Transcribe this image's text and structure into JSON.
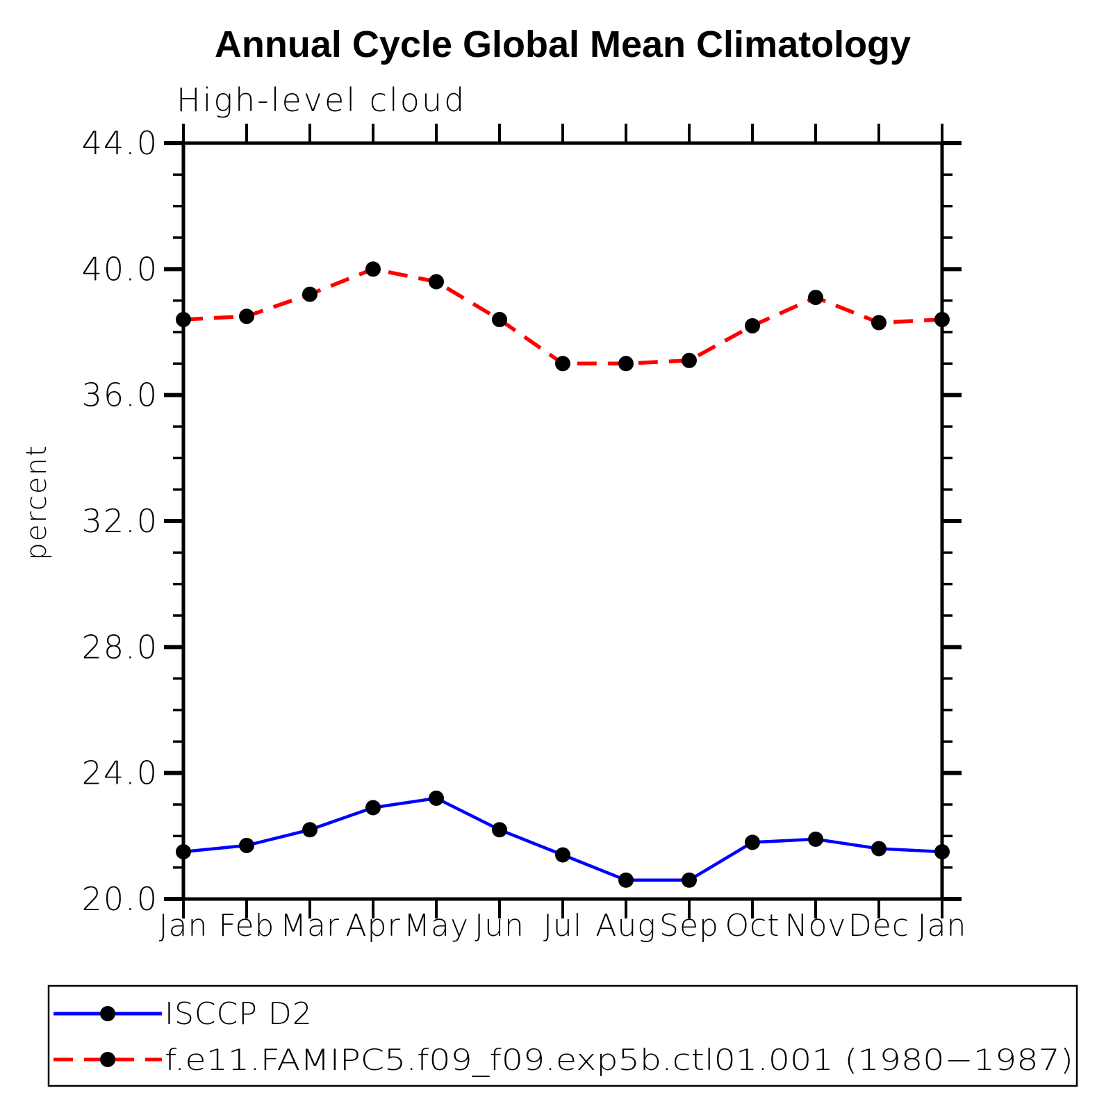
{
  "chart_data": {
    "type": "line",
    "title": "Annual Cycle Global Mean Climatology",
    "subtitle": "High-level cloud",
    "xlabel": "",
    "ylabel": "percent",
    "categories": [
      "Jan",
      "Feb",
      "Mar",
      "Apr",
      "May",
      "Jun",
      "Jul",
      "Aug",
      "Sep",
      "Oct",
      "Nov",
      "Dec",
      "Jan"
    ],
    "ylim": [
      20.0,
      44.0
    ],
    "ytick_major_interval": 4.0,
    "ytick_minor_interval": 1.0,
    "yticklabels": [
      "20.0",
      "24.0",
      "28.0",
      "32.0",
      "36.0",
      "40.0",
      "44.0"
    ],
    "grid": false,
    "legend_position": "bottom-left-box",
    "axis_color": "#000000",
    "background_color": "#ffffff",
    "series": [
      {
        "name": "ISCCP D2",
        "color": "#0000ff",
        "line_style": "solid",
        "marker": "filled-circle",
        "marker_color": "#000000",
        "values": [
          21.5,
          21.7,
          22.2,
          22.9,
          23.2,
          22.2,
          21.4,
          20.6,
          20.6,
          21.8,
          21.9,
          21.6,
          21.5
        ]
      },
      {
        "name": "f.e11.FAMIPC5.f09_f09.exp5b.ctl01.001 (1980−1987)",
        "color": "#ff0000",
        "line_style": "dashed",
        "marker": "filled-circle",
        "marker_color": "#000000",
        "values": [
          38.4,
          38.5,
          39.2,
          40.0,
          39.6,
          38.4,
          37.0,
          37.0,
          37.1,
          38.2,
          39.1,
          38.3,
          38.4
        ]
      }
    ]
  }
}
